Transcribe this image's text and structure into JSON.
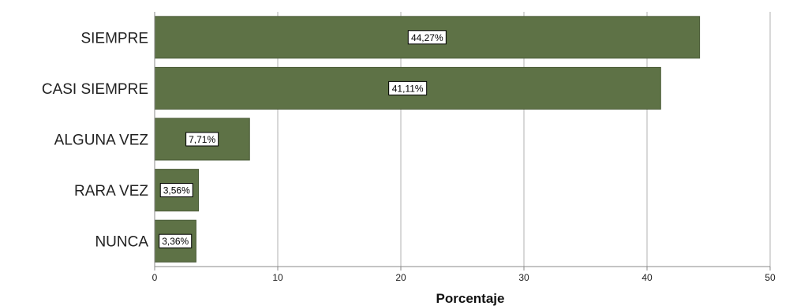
{
  "chart_data": {
    "type": "bar",
    "orientation": "horizontal",
    "categories": [
      "SIEMPRE",
      "CASI SIEMPRE",
      "ALGUNA VEZ",
      "RARA VEZ",
      "NUNCA"
    ],
    "values": [
      44.27,
      41.11,
      7.71,
      3.56,
      3.36
    ],
    "data_labels": [
      "44,27%",
      "41,11%",
      "7,71%",
      "3,56%",
      "3,36%"
    ],
    "xlabel": "Porcentaje",
    "ylabel": "",
    "xlim": [
      0,
      50
    ],
    "xticks": [
      0,
      10,
      20,
      30,
      40,
      50
    ],
    "grid": "vertical",
    "legend": "none",
    "colors": {
      "bar": "#5e7246",
      "bar_edge": "#4a5b37",
      "grid": "#cccccc",
      "axis": "#888888"
    }
  }
}
